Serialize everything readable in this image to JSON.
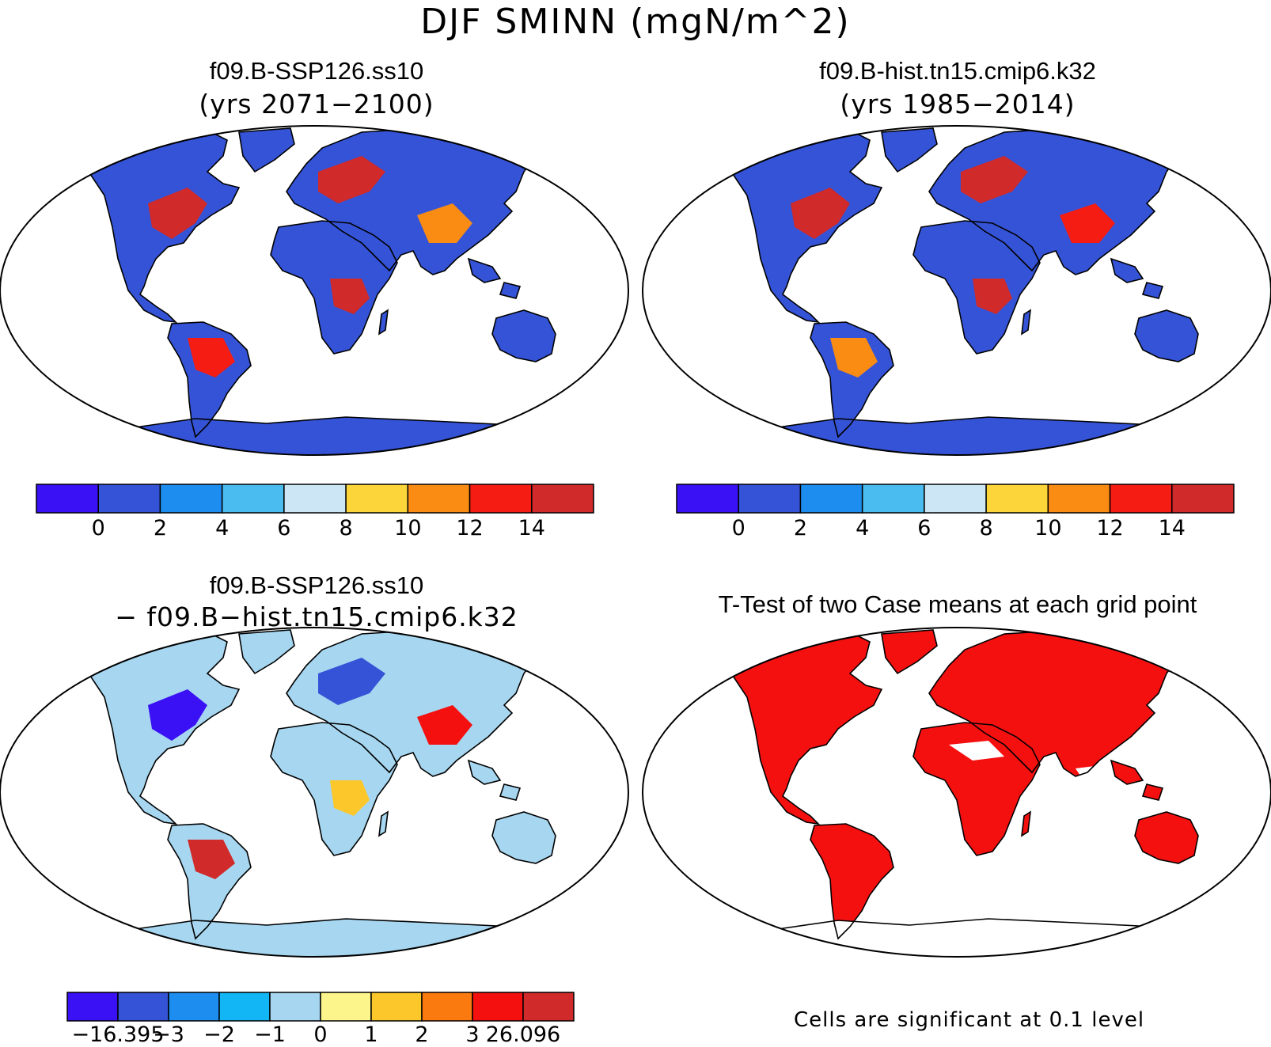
{
  "title": "DJF SMINN (mgN/m^2)",
  "panels": [
    {
      "id": "p1",
      "title": "f09.B-SSP126.ss10",
      "subtitle": "(yrs 2071−2100)"
    },
    {
      "id": "p2",
      "title": "f09.B-hist.tn15.cmip6.k32",
      "subtitle": "(yrs 1985−2014)"
    },
    {
      "id": "p3",
      "title": "f09.B-SSP126.ss10",
      "subtitle": "− f09.B−hist.tn15.cmip6.k32"
    },
    {
      "id": "p4",
      "title": "T-Test of two Case means at each grid point",
      "subtitle": ""
    }
  ],
  "colorbar_abs": {
    "colors": [
      "#3a10f5",
      "#3553d6",
      "#1d8df0",
      "#4bbcef",
      "#cde6f5",
      "#fcd53a",
      "#fa8c14",
      "#f51c14",
      "#d02a2a"
    ],
    "tick_labels": [
      "0",
      "2",
      "4",
      "6",
      "8",
      "10",
      "12",
      "14"
    ]
  },
  "colorbar_diff": {
    "colors": [
      "#3a10f5",
      "#3553d6",
      "#1d8df0",
      "#12b6f5",
      "#a6d6f0",
      "#fcf58c",
      "#fcc72a",
      "#fa7a10",
      "#f51010",
      "#d02a2a"
    ],
    "tick_labels": [
      "−16.395",
      "−3",
      "−2",
      "−1",
      "0",
      "1",
      "2",
      "3",
      "26.096"
    ]
  },
  "significance_note": "Cells are significant at 0.1 level",
  "significance_color": "#f51010"
}
